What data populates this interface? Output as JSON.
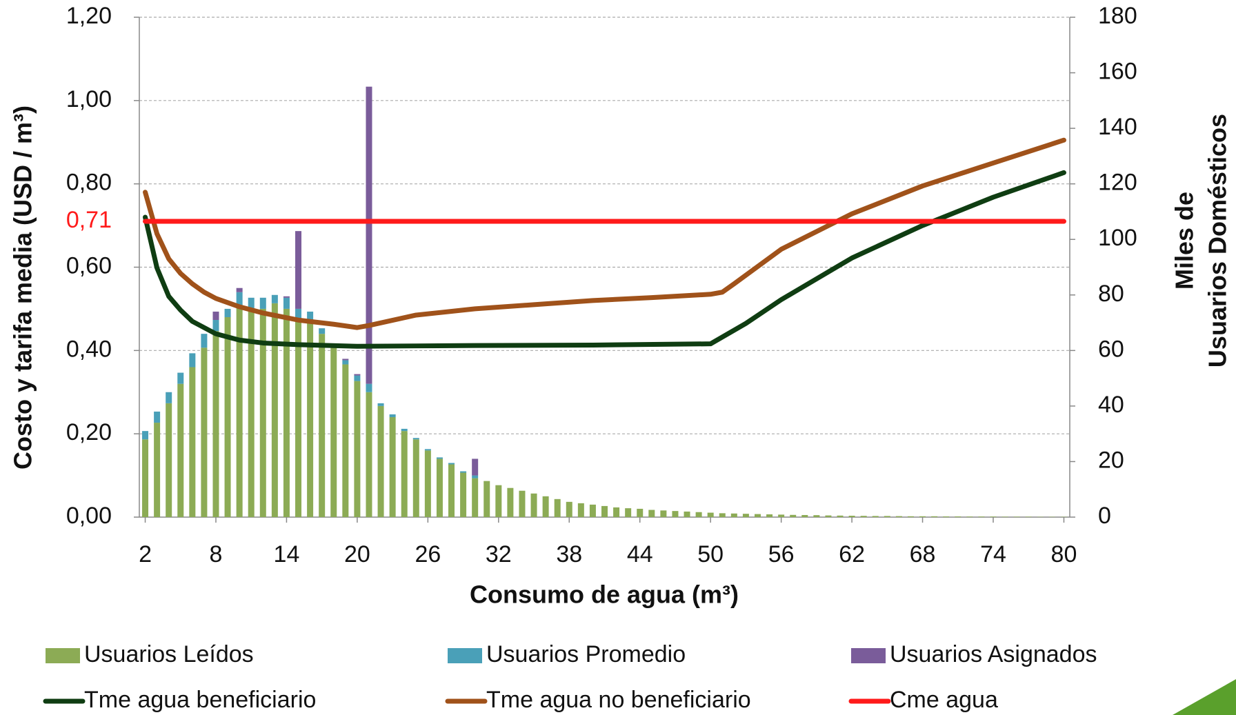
{
  "chart_data": {
    "type": "bar-line",
    "ylabel": "Costo y tarifa media  (USD / m³)",
    "y2label": [
      "Miles de",
      "Usuarios Domésticos"
    ],
    "xlabel": "Consumo de agua (m³)",
    "x": [
      2,
      3,
      4,
      5,
      6,
      7,
      8,
      9,
      10,
      11,
      12,
      13,
      14,
      15,
      16,
      17,
      18,
      19,
      20,
      21,
      22,
      23,
      24,
      25,
      26,
      27,
      28,
      29,
      30,
      31,
      32,
      33,
      34,
      35,
      36,
      37,
      38,
      39,
      40,
      41,
      42,
      43,
      44,
      45,
      46,
      47,
      48,
      49,
      50,
      51,
      52,
      53,
      54,
      55,
      56,
      57,
      58,
      59,
      60,
      61,
      62,
      63,
      64,
      65,
      66,
      67,
      68,
      69,
      70,
      71,
      72,
      73,
      74,
      75,
      76,
      77,
      78,
      79,
      80
    ],
    "xlim": [
      1.5,
      80.5
    ],
    "xticks": [
      2,
      8,
      14,
      20,
      26,
      32,
      38,
      44,
      50,
      56,
      62,
      68,
      74,
      80
    ],
    "ylim": [
      0,
      1.2
    ],
    "yticks": [
      {
        "value": 0,
        "label": "0,00"
      },
      {
        "value": 0.2,
        "label": "0,20"
      },
      {
        "value": 0.4,
        "label": "0,40"
      },
      {
        "value": 0.6,
        "label": "0,60"
      },
      {
        "value": 0.8,
        "label": "0,80"
      },
      {
        "value": 1.0,
        "label": "1,00"
      },
      {
        "value": 1.2,
        "label": "1,20"
      }
    ],
    "y2lim": [
      0,
      180
    ],
    "y2ticks": [
      0,
      20,
      40,
      60,
      80,
      100,
      120,
      140,
      160,
      180
    ],
    "grid": true,
    "legend": "bottom",
    "series": [
      {
        "name": "Usuarios Leídos",
        "kind": "bar",
        "axis": "y2",
        "color": "#8cab55",
        "values": [
          28,
          34,
          41,
          48,
          54,
          61,
          67,
          72,
          76,
          75,
          75,
          77,
          75,
          71,
          71,
          66,
          61,
          55,
          49,
          45,
          40,
          36,
          31,
          28,
          24,
          21,
          19,
          16,
          14,
          13,
          11.5,
          10.5,
          9.5,
          8.5,
          7.5,
          6.5,
          5.5,
          5,
          4.5,
          4,
          3.5,
          3.2,
          3,
          2.6,
          2.4,
          2.2,
          2,
          1.8,
          1.6,
          1.4,
          1.3,
          1.2,
          1.1,
          1,
          0.9,
          0.8,
          0.75,
          0.7,
          0.6,
          0.55,
          0.5,
          0.45,
          0.4,
          0.4,
          0.35,
          0.3,
          0.3,
          0.3,
          0.25,
          0.25,
          0.2,
          0.2,
          0.2,
          0.15,
          0.15,
          0.15,
          0.1,
          0.1,
          0.1
        ]
      },
      {
        "name": "Usuarios Promedio",
        "kind": "bar",
        "axis": "y2",
        "color": "#4aa0b8",
        "values": [
          3,
          4,
          4,
          4,
          5,
          5,
          4,
          3,
          5,
          4,
          4,
          3,
          4,
          4,
          3,
          2,
          1,
          1.5,
          2,
          3,
          1,
          1,
          0.8,
          0.5,
          0.5,
          0.5,
          0.5,
          0.5,
          1,
          0,
          0,
          0,
          0,
          0,
          0,
          0,
          0,
          0,
          0,
          0,
          0,
          0,
          0,
          0,
          0,
          0,
          0,
          0,
          0,
          0,
          0,
          0,
          0,
          0,
          0,
          0,
          0,
          0,
          0,
          0,
          0,
          0,
          0,
          0,
          0,
          0,
          0,
          0,
          0,
          0,
          0,
          0,
          0,
          0,
          0,
          0,
          0,
          0,
          0
        ]
      },
      {
        "name": "Usuarios Asignados",
        "kind": "bar",
        "axis": "y2",
        "color": "#7a5c9a",
        "values": [
          0,
          0,
          0,
          0,
          0,
          0,
          3,
          0,
          1.5,
          0,
          0,
          0,
          0.5,
          28,
          0,
          0,
          0,
          0.5,
          0.5,
          107,
          0,
          0,
          0,
          0,
          0,
          0,
          0,
          0,
          6,
          0,
          0,
          0,
          0,
          0,
          0,
          0,
          0,
          0,
          0,
          0,
          0,
          0,
          0,
          0,
          0,
          0,
          0,
          0,
          0,
          0,
          0,
          0,
          0,
          0,
          0,
          0,
          0,
          0,
          0,
          0,
          0,
          0,
          0,
          0,
          0,
          0,
          0,
          0,
          0,
          0,
          0,
          0,
          0,
          0,
          0,
          0,
          0,
          0,
          0
        ]
      },
      {
        "name": "Tme agua beneficiario",
        "kind": "line",
        "color": "#0f3d12",
        "x": [
          2,
          3,
          4,
          5,
          6,
          8,
          10,
          12,
          15,
          20,
          25,
          30,
          40,
          50,
          53,
          56,
          62,
          68,
          74,
          80
        ],
        "values": [
          0.72,
          0.598,
          0.53,
          0.497,
          0.47,
          0.44,
          0.425,
          0.418,
          0.414,
          0.41,
          0.411,
          0.412,
          0.413,
          0.416,
          0.465,
          0.522,
          0.622,
          0.7,
          0.768,
          0.827
        ]
      },
      {
        "name": "Tme agua no beneficiario",
        "kind": "line",
        "color": "#a0521a",
        "x": [
          2,
          3,
          4,
          5,
          6,
          7,
          8,
          10,
          12,
          15,
          18,
          20,
          21,
          25,
          30,
          35,
          40,
          45,
          50,
          51,
          52,
          56,
          62,
          68,
          74,
          80
        ],
        "values": [
          0.78,
          0.68,
          0.62,
          0.585,
          0.56,
          0.54,
          0.525,
          0.505,
          0.49,
          0.473,
          0.463,
          0.455,
          0.46,
          0.485,
          0.5,
          0.51,
          0.52,
          0.527,
          0.535,
          0.54,
          0.56,
          0.643,
          0.728,
          0.795,
          0.85,
          0.905
        ]
      },
      {
        "name": "Cme agua",
        "kind": "line",
        "color": "#ff1a1a",
        "x": [
          2,
          80
        ],
        "values": [
          0.71,
          0.71
        ]
      }
    ],
    "annotations": [
      {
        "value": 0.71,
        "label": "0,71",
        "color": "#ff1a1a"
      }
    ]
  }
}
